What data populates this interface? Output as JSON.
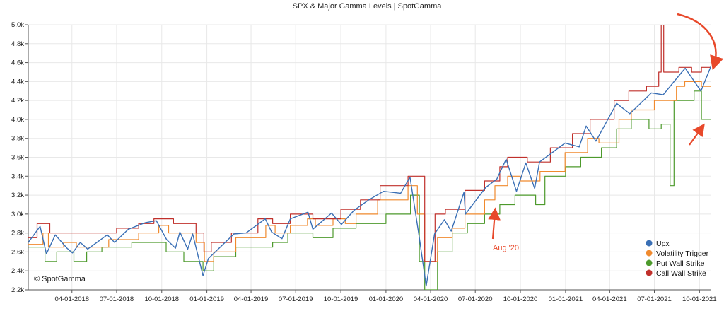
{
  "chart_data": {
    "type": "line",
    "title": "SPX & Major Gamma Levels | SpotGamma",
    "watermark": "© SpotGamma",
    "x_ticks": [
      "04-01-2018",
      "07-01-2018",
      "10-01-2018",
      "01-01-2019",
      "04-01-2019",
      "07-01-2019",
      "10-01-2019",
      "01-01-2020",
      "04-01-2020",
      "07-01-2020",
      "10-01-2020",
      "01-01-2021",
      "04-01-2021",
      "07-01-2021",
      "10-01-2021"
    ],
    "y_ticks": [
      "2.2k",
      "2.4k",
      "2.6k",
      "2.8k",
      "3.0k",
      "3.2k",
      "3.4k",
      "3.6k",
      "3.8k",
      "4.0k",
      "4.2k",
      "4.4k",
      "4.6k",
      "4.8k",
      "5.0k"
    ],
    "xlim": [
      "2018-01-02",
      "2021-10-25"
    ],
    "ylim": [
      2200,
      5000
    ],
    "grid": true,
    "legend_position": "bottom-right",
    "annotations": [
      {
        "text": "Aug '20",
        "color": "#e8492b"
      }
    ],
    "series": [
      {
        "name": "Upx",
        "color": "#3a6fb5",
        "points": [
          [
            "2018-01-02",
            2700
          ],
          [
            "2018-01-26",
            2870
          ],
          [
            "2018-02-08",
            2580
          ],
          [
            "2018-02-26",
            2780
          ],
          [
            "2018-03-22",
            2640
          ],
          [
            "2018-04-02",
            2590
          ],
          [
            "2018-04-18",
            2700
          ],
          [
            "2018-05-03",
            2630
          ],
          [
            "2018-06-12",
            2780
          ],
          [
            "2018-06-27",
            2700
          ],
          [
            "2018-07-25",
            2840
          ],
          [
            "2018-08-29",
            2910
          ],
          [
            "2018-09-20",
            2930
          ],
          [
            "2018-10-11",
            2730
          ],
          [
            "2018-10-29",
            2640
          ],
          [
            "2018-11-07",
            2810
          ],
          [
            "2018-11-23",
            2630
          ],
          [
            "2018-12-03",
            2790
          ],
          [
            "2018-12-24",
            2350
          ],
          [
            "2019-01-04",
            2530
          ],
          [
            "2019-02-25",
            2790
          ],
          [
            "2019-03-22",
            2800
          ],
          [
            "2019-04-30",
            2950
          ],
          [
            "2019-05-13",
            2810
          ],
          [
            "2019-06-03",
            2740
          ],
          [
            "2019-06-20",
            2950
          ],
          [
            "2019-07-26",
            3020
          ],
          [
            "2019-08-05",
            2840
          ],
          [
            "2019-09-12",
            3010
          ],
          [
            "2019-10-02",
            2890
          ],
          [
            "2019-10-28",
            3040
          ],
          [
            "2019-11-27",
            3150
          ],
          [
            "2019-12-27",
            3240
          ],
          [
            "2020-01-31",
            3220
          ],
          [
            "2020-02-19",
            3390
          ],
          [
            "2020-03-09",
            2750
          ],
          [
            "2020-03-23",
            2240
          ],
          [
            "2020-04-09",
            2790
          ],
          [
            "2020-04-29",
            2940
          ],
          [
            "2020-05-13",
            2820
          ],
          [
            "2020-06-08",
            3230
          ],
          [
            "2020-06-11",
            3000
          ],
          [
            "2020-07-22",
            3280
          ],
          [
            "2020-08-14",
            3370
          ],
          [
            "2020-09-02",
            3580
          ],
          [
            "2020-09-23",
            3240
          ],
          [
            "2020-10-12",
            3540
          ],
          [
            "2020-10-30",
            3270
          ],
          [
            "2020-11-09",
            3550
          ],
          [
            "2020-12-31",
            3750
          ],
          [
            "2021-01-29",
            3710
          ],
          [
            "2021-02-12",
            3930
          ],
          [
            "2021-03-04",
            3770
          ],
          [
            "2021-04-15",
            4170
          ],
          [
            "2021-05-12",
            4060
          ],
          [
            "2021-06-25",
            4280
          ],
          [
            "2021-07-19",
            4260
          ],
          [
            "2021-08-26",
            4500
          ],
          [
            "2021-09-02",
            4540
          ],
          [
            "2021-10-04",
            4300
          ],
          [
            "2021-10-25",
            4570
          ]
        ]
      },
      {
        "name": "Volatility Trigger",
        "color": "#f08a2e",
        "points": [
          [
            "2018-01-02",
            2680
          ],
          [
            "2018-02-01",
            2800
          ],
          [
            "2018-02-12",
            2650
          ],
          [
            "2018-03-15",
            2700
          ],
          [
            "2018-04-10",
            2650
          ],
          [
            "2018-06-15",
            2730
          ],
          [
            "2018-08-15",
            2800
          ],
          [
            "2018-09-25",
            2880
          ],
          [
            "2018-10-15",
            2800
          ],
          [
            "2018-12-10",
            2700
          ],
          [
            "2018-12-27",
            2500
          ],
          [
            "2019-01-15",
            2600
          ],
          [
            "2019-03-01",
            2750
          ],
          [
            "2019-05-01",
            2880
          ],
          [
            "2019-05-20",
            2800
          ],
          [
            "2019-06-20",
            2880
          ],
          [
            "2019-07-25",
            2950
          ],
          [
            "2019-08-10",
            2880
          ],
          [
            "2019-09-15",
            2950
          ],
          [
            "2019-10-10",
            2900
          ],
          [
            "2019-11-01",
            3000
          ],
          [
            "2019-12-15",
            3150
          ],
          [
            "2020-02-15",
            3300
          ],
          [
            "2020-03-05",
            3000
          ],
          [
            "2020-03-20",
            2500
          ],
          [
            "2020-04-15",
            2750
          ],
          [
            "2020-05-15",
            2850
          ],
          [
            "2020-06-10",
            3000
          ],
          [
            "2020-07-20",
            3150
          ],
          [
            "2020-08-10",
            3300
          ],
          [
            "2020-09-05",
            3400
          ],
          [
            "2020-10-01",
            3350
          ],
          [
            "2020-11-10",
            3450
          ],
          [
            "2020-12-31",
            3650
          ],
          [
            "2021-02-15",
            3800
          ],
          [
            "2021-03-10",
            3750
          ],
          [
            "2021-04-20",
            4000
          ],
          [
            "2021-05-15",
            4100
          ],
          [
            "2021-07-01",
            4200
          ],
          [
            "2021-08-15",
            4350
          ],
          [
            "2021-09-01",
            4400
          ],
          [
            "2021-10-05",
            4350
          ],
          [
            "2021-10-25",
            4500
          ]
        ]
      },
      {
        "name": "Put Wall Strike",
        "color": "#4d9a2c",
        "points": [
          [
            "2018-01-02",
            2650
          ],
          [
            "2018-02-05",
            2500
          ],
          [
            "2018-03-01",
            2600
          ],
          [
            "2018-04-05",
            2500
          ],
          [
            "2018-05-01",
            2600
          ],
          [
            "2018-06-01",
            2650
          ],
          [
            "2018-08-01",
            2700
          ],
          [
            "2018-10-10",
            2600
          ],
          [
            "2018-11-15",
            2500
          ],
          [
            "2018-12-24",
            2400
          ],
          [
            "2019-01-15",
            2550
          ],
          [
            "2019-03-01",
            2650
          ],
          [
            "2019-05-15",
            2700
          ],
          [
            "2019-06-15",
            2800
          ],
          [
            "2019-08-05",
            2750
          ],
          [
            "2019-09-15",
            2850
          ],
          [
            "2019-11-01",
            2900
          ],
          [
            "2020-01-01",
            3000
          ],
          [
            "2020-02-20",
            3200
          ],
          [
            "2020-03-09",
            2500
          ],
          [
            "2020-03-20",
            2200
          ],
          [
            "2020-04-15",
            2600
          ],
          [
            "2020-05-15",
            2800
          ],
          [
            "2020-06-15",
            2900
          ],
          [
            "2020-07-20",
            3000
          ],
          [
            "2020-08-20",
            3100
          ],
          [
            "2020-09-20",
            3200
          ],
          [
            "2020-11-01",
            3100
          ],
          [
            "2020-11-20",
            3400
          ],
          [
            "2021-01-01",
            3500
          ],
          [
            "2021-02-01",
            3600
          ],
          [
            "2021-03-15",
            3700
          ],
          [
            "2021-04-15",
            3900
          ],
          [
            "2021-05-15",
            4000
          ],
          [
            "2021-06-20",
            3900
          ],
          [
            "2021-07-15",
            3950
          ],
          [
            "2021-08-02",
            3300
          ],
          [
            "2021-08-10",
            4200
          ],
          [
            "2021-09-20",
            4300
          ],
          [
            "2021-10-05",
            4000
          ],
          [
            "2021-10-25",
            4000
          ]
        ]
      },
      {
        "name": "Call Wall Strike",
        "color": "#c0302b",
        "points": [
          [
            "2018-01-02",
            2750
          ],
          [
            "2018-01-20",
            2900
          ],
          [
            "2018-02-15",
            2800
          ],
          [
            "2018-06-01",
            2800
          ],
          [
            "2018-07-01",
            2850
          ],
          [
            "2018-08-15",
            2900
          ],
          [
            "2018-09-15",
            2950
          ],
          [
            "2018-10-25",
            2900
          ],
          [
            "2018-12-10",
            2800
          ],
          [
            "2018-12-26",
            2600
          ],
          [
            "2019-01-10",
            2700
          ],
          [
            "2019-02-20",
            2800
          ],
          [
            "2019-04-15",
            2950
          ],
          [
            "2019-05-15",
            2900
          ],
          [
            "2019-06-20",
            3000
          ],
          [
            "2019-08-05",
            2950
          ],
          [
            "2019-10-01",
            3050
          ],
          [
            "2019-11-10",
            3150
          ],
          [
            "2019-12-20",
            3300
          ],
          [
            "2020-02-15",
            3400
          ],
          [
            "2020-03-05",
            3400
          ],
          [
            "2020-03-20",
            2500
          ],
          [
            "2020-04-10",
            3000
          ],
          [
            "2020-05-01",
            3050
          ],
          [
            "2020-06-10",
            3250
          ],
          [
            "2020-07-20",
            3350
          ],
          [
            "2020-08-20",
            3500
          ],
          [
            "2020-09-05",
            3600
          ],
          [
            "2020-10-15",
            3550
          ],
          [
            "2020-12-01",
            3700
          ],
          [
            "2021-01-15",
            3850
          ],
          [
            "2021-02-20",
            4000
          ],
          [
            "2021-04-10",
            4200
          ],
          [
            "2021-05-10",
            4300
          ],
          [
            "2021-06-15",
            4350
          ],
          [
            "2021-07-10",
            4500
          ],
          [
            "2021-07-15",
            5000
          ],
          [
            "2021-07-20",
            4500
          ],
          [
            "2021-08-20",
            4550
          ],
          [
            "2021-09-15",
            4500
          ],
          [
            "2021-10-05",
            4550
          ],
          [
            "2021-10-25",
            4700
          ]
        ]
      }
    ]
  }
}
